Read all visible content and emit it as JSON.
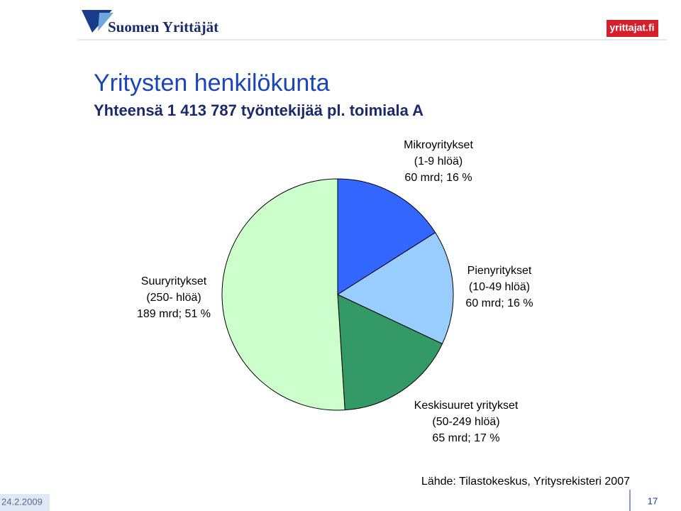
{
  "header": {
    "logo": "Suomen Yrittäjät",
    "site": "yrittajat.fi"
  },
  "chart_data": {
    "type": "pie",
    "title": "Yritysten henkilökunta",
    "subtitle": "Yhteensä 1 413 787 työntekijää pl. toimiala A",
    "categories": [
      "Mikroyritykset",
      "Pienyritykset",
      "Keskisuuret yritykset",
      "Suuryritykset"
    ],
    "category_details": [
      "(1-9 hlöä)",
      "(10-49 hlöä)",
      "(50-249 hlöä)",
      "(250- hlöä)"
    ],
    "values": [
      16,
      16,
      17,
      51
    ],
    "value_labels": [
      "60 mrd; 16 %",
      "60 mrd; 16 %",
      "65 mrd; 17 %",
      "189 mrd; 51 %"
    ],
    "colors": [
      "#3366ff",
      "#99ccff",
      "#339966",
      "#ccffcc"
    ],
    "source": "Lähde: Tilastokeskus, Yritysrekisteri 2007"
  },
  "footer": {
    "date": "24.2.2009",
    "page": "17"
  }
}
